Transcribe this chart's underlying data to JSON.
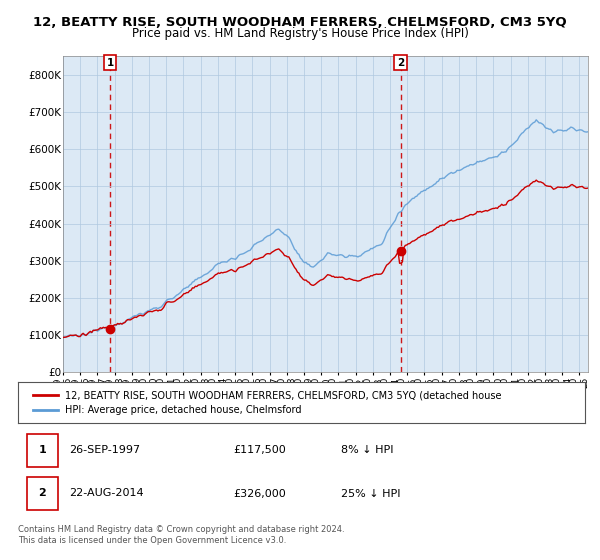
{
  "title": "12, BEATTY RISE, SOUTH WOODHAM FERRERS, CHELMSFORD, CM3 5YQ",
  "subtitle": "Price paid vs. HM Land Registry's House Price Index (HPI)",
  "ylim": [
    0,
    850000
  ],
  "yticks": [
    0,
    100000,
    200000,
    300000,
    400000,
    500000,
    600000,
    700000,
    800000
  ],
  "ytick_labels": [
    "£0",
    "£100K",
    "£200K",
    "£300K",
    "£400K",
    "£500K",
    "£600K",
    "£700K",
    "£800K"
  ],
  "plot_bg_color": "#dce9f5",
  "fig_bg_color": "#ffffff",
  "grid_color": "#b0c8e0",
  "hpi_color": "#5b9bd5",
  "price_color": "#cc0000",
  "sale1_x": 1997.73,
  "sale1_price": 117500,
  "sale2_x": 2014.62,
  "sale2_price": 326000,
  "legend_price_label": "12, BEATTY RISE, SOUTH WOODHAM FERRERS, CHELMSFORD, CM3 5YQ (detached house",
  "legend_hpi_label": "HPI: Average price, detached house, Chelmsford",
  "footer": "Contains HM Land Registry data © Crown copyright and database right 2024.\nThis data is licensed under the Open Government Licence v3.0.",
  "title_fontsize": 9.5,
  "subtitle_fontsize": 8.5,
  "xmin": 1995.0,
  "xmax": 2025.5
}
